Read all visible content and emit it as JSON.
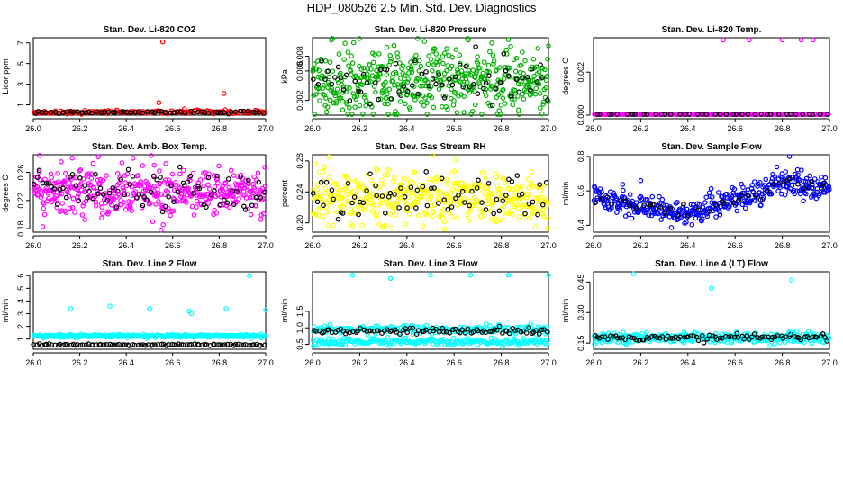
{
  "page_title": "HDP_080526  2.5 Min. Std. Dev. Diagnostics",
  "colors": {
    "overlay": "#000000",
    "axis": "#000000"
  },
  "chart_data": [
    {
      "id": "co2",
      "type": "scatter",
      "title": "Stan. Dev. Li-820 CO2",
      "ylabel": "Licor ppm",
      "color": "#ff0000",
      "xlim": [
        26.0,
        27.0
      ],
      "ylim": [
        0,
        7.5
      ],
      "xticks": [
        "26.0",
        "26.2",
        "26.4",
        "26.6",
        "26.8",
        "27.0"
      ],
      "yticks": [
        {
          "v": 1,
          "label": "1"
        },
        {
          "v": 3,
          "label": "3"
        },
        {
          "v": 5,
          "label": "5"
        },
        {
          "v": 7,
          "label": "7"
        }
      ],
      "base": {
        "mean": 0.3,
        "spread": 0.08,
        "n": 150
      },
      "overlay": {
        "mean": 0.28,
        "spread": 0.06,
        "n": 60
      },
      "outliers": [
        [
          26.557,
          7.1
        ],
        [
          26.54,
          1.2
        ],
        [
          26.82,
          2.1
        ],
        [
          26.65,
          0.6
        ]
      ]
    },
    {
      "id": "pressure",
      "type": "scatter",
      "title": "Stan. Dev. Li-820 Pressure",
      "ylabel": "kPa",
      "color": "#00b000",
      "xlim": [
        26.0,
        27.0
      ],
      "ylim": [
        0.0,
        0.0105
      ],
      "xticks": [
        "26.0",
        "26.2",
        "26.4",
        "26.6",
        "26.8",
        "27.0"
      ],
      "yticks": [
        {
          "v": 0.002,
          "label": "0.002"
        },
        {
          "v": 0.006,
          "label": "0.006"
        },
        {
          "v": 0.008,
          "label": "0.008"
        }
      ],
      "base": {
        "mean": 0.0045,
        "spread": 0.0022,
        "n": 480
      },
      "overlay": {
        "mean": 0.0045,
        "spread": 0.0018,
        "n": 70
      },
      "outliers": [
        [
          26.66,
          0.0102
        ],
        [
          27.0,
          0.0094
        ],
        [
          26.2,
          0.0013
        ]
      ]
    },
    {
      "id": "temp",
      "type": "scatter",
      "title": "Stan. Dev. Li-820 Temp.",
      "ylabel": "degrees C",
      "color": "#ff00ff",
      "xlim": [
        26.0,
        27.0
      ],
      "ylim": [
        0.0,
        0.0036
      ],
      "xticks": [
        "26.0",
        "26.2",
        "26.4",
        "26.6",
        "26.8",
        "27.0"
      ],
      "yticks": [
        {
          "v": 0.0,
          "label": "0.000"
        },
        {
          "v": 0.002,
          "label": "0.002"
        }
      ],
      "base": {
        "mean": 0.0,
        "spread": 1e-05,
        "n": 150
      },
      "overlay": {
        "mean": 0.0,
        "spread": 1e-05,
        "n": 40
      },
      "outliers": [
        [
          26.55,
          0.0035
        ],
        [
          26.66,
          0.0035
        ],
        [
          26.8,
          0.0035
        ],
        [
          26.88,
          0.0035
        ],
        [
          26.93,
          0.0035
        ]
      ]
    },
    {
      "id": "boxtemp",
      "type": "scatter",
      "title": "Stan. Dev. Amb. Box Temp.",
      "ylabel": "degrees C",
      "color": "#ff00ff",
      "xlim": [
        26.0,
        27.0
      ],
      "ylim": [
        0.175,
        0.285
      ],
      "xticks": [
        "26.0",
        "26.2",
        "26.4",
        "26.6",
        "26.8",
        "27.0"
      ],
      "yticks": [
        {
          "v": 0.18,
          "label": "0.18"
        },
        {
          "v": 0.22,
          "label": "0.22"
        },
        {
          "v": 0.26,
          "label": "0.26"
        }
      ],
      "base": {
        "mean": 0.232,
        "spread": 0.018,
        "n": 420
      },
      "overlay": {
        "mean": 0.232,
        "spread": 0.015,
        "n": 80
      },
      "outliers": [
        [
          26.28,
          0.282
        ],
        [
          26.55,
          0.178
        ],
        [
          26.12,
          0.275
        ],
        [
          26.52,
          0.27
        ]
      ]
    },
    {
      "id": "rh",
      "type": "scatter",
      "title": "Stan. Dev. Gas Stream RH",
      "ylabel": "percent",
      "color": "#ffff00",
      "xlim": [
        26.0,
        27.0
      ],
      "ylim": [
        0.188,
        0.288
      ],
      "xticks": [
        "26.0",
        "26.2",
        "26.4",
        "26.6",
        "26.8",
        "27.0"
      ],
      "yticks": [
        {
          "v": 0.2,
          "label": "0.20"
        },
        {
          "v": 0.24,
          "label": "0.24"
        },
        {
          "v": 0.28,
          "label": "0.28"
        }
      ],
      "base": {
        "mean": 0.232,
        "spread": 0.016,
        "n": 420
      },
      "overlay": {
        "mean": 0.232,
        "spread": 0.014,
        "n": 70
      },
      "outliers": [
        [
          26.07,
          0.285
        ],
        [
          26.56,
          0.192
        ]
      ]
    },
    {
      "id": "sampleflow",
      "type": "scatter",
      "title": "Stan. Dev. Sample Flow",
      "ylabel": "ml/min",
      "color": "#0000ff",
      "xlim": [
        26.0,
        27.0
      ],
      "ylim": [
        0.36,
        0.81
      ],
      "xticks": [
        "26.0",
        "26.2",
        "26.4",
        "26.6",
        "26.8",
        "27.0"
      ],
      "yticks": [
        {
          "v": 0.4,
          "label": "0.4"
        },
        {
          "v": 0.6,
          "label": "0.6"
        },
        {
          "v": 0.8,
          "label": "0.8"
        }
      ],
      "trend": [
        [
          26.0,
          0.55
        ],
        [
          26.1,
          0.54
        ],
        [
          26.2,
          0.52
        ],
        [
          26.3,
          0.48
        ],
        [
          26.4,
          0.47
        ],
        [
          26.5,
          0.5
        ],
        [
          26.6,
          0.55
        ],
        [
          26.7,
          0.58
        ],
        [
          26.8,
          0.66
        ],
        [
          26.9,
          0.63
        ],
        [
          27.0,
          0.62
        ]
      ],
      "base": {
        "mean": 0.0,
        "spread": 0.035,
        "n": 420
      },
      "overlay": {
        "mean": 0.0,
        "spread": 0.02,
        "n": 40
      },
      "outliers": [
        [
          26.83,
          0.8
        ],
        [
          26.2,
          0.66
        ]
      ]
    },
    {
      "id": "line2",
      "type": "scatter",
      "title": "Stan. Dev. Line 2 Flow",
      "ylabel": "ml/min",
      "color": "#00ffff",
      "xlim": [
        26.0,
        27.0
      ],
      "ylim": [
        0.2,
        6.3
      ],
      "xticks": [
        "26.0",
        "26.2",
        "26.4",
        "26.6",
        "26.8",
        "27.0"
      ],
      "yticks": [
        {
          "v": 1,
          "label": "1"
        },
        {
          "v": 2,
          "label": "2"
        },
        {
          "v": 3,
          "label": "3"
        },
        {
          "v": 4,
          "label": "4"
        },
        {
          "v": 5,
          "label": "5"
        },
        {
          "v": 6,
          "label": "6"
        }
      ],
      "base": {
        "mean": 1.25,
        "spread": 0.06,
        "n": 300
      },
      "overlay": {
        "mean": 0.55,
        "spread": 0.03,
        "n": 90
      },
      "outliers": [
        [
          26.16,
          3.4
        ],
        [
          26.33,
          3.6
        ],
        [
          26.5,
          3.4
        ],
        [
          26.67,
          3.2
        ],
        [
          26.68,
          3.0
        ],
        [
          26.83,
          3.4
        ],
        [
          26.93,
          6.0
        ],
        [
          27.0,
          3.3
        ]
      ]
    },
    {
      "id": "line3",
      "type": "scatter",
      "title": "Stan. Dev. Line 3 Flow",
      "ylabel": "ml/min",
      "color": "#00ffff",
      "xlim": [
        26.0,
        27.0
      ],
      "ylim": [
        0.35,
        2.7
      ],
      "xticks": [
        "26.0",
        "26.2",
        "26.4",
        "26.6",
        "26.8",
        "27.0"
      ],
      "yticks": [
        {
          "v": 0.5,
          "label": "0.5"
        },
        {
          "v": 1.0,
          "label": "1.0"
        },
        {
          "v": 1.5,
          "label": "1.5"
        }
      ],
      "base_bands": [
        {
          "mean": 0.95,
          "spread": 0.06,
          "n": 220
        },
        {
          "mean": 0.58,
          "spread": 0.05,
          "n": 220
        }
      ],
      "overlay": {
        "mean": 0.9,
        "spread": 0.05,
        "n": 90
      },
      "outliers": [
        [
          26.17,
          2.6
        ],
        [
          26.33,
          2.5
        ],
        [
          26.5,
          2.6
        ],
        [
          26.67,
          2.6
        ],
        [
          26.83,
          2.6
        ],
        [
          27.0,
          2.6
        ]
      ]
    },
    {
      "id": "line4",
      "type": "scatter",
      "title": "Stan. Dev. Line 4 (LT) Flow",
      "ylabel": "ml/min",
      "color": "#00ffff",
      "xlim": [
        26.0,
        27.0
      ],
      "ylim": [
        0.12,
        0.5
      ],
      "xticks": [
        "26.0",
        "26.2",
        "26.4",
        "26.6",
        "26.8",
        "27.0"
      ],
      "yticks": [
        {
          "v": 0.15,
          "label": "0.15"
        },
        {
          "v": 0.3,
          "label": "0.30"
        },
        {
          "v": 0.45,
          "label": "0.45"
        }
      ],
      "base": {
        "mean": 0.175,
        "spread": 0.012,
        "n": 360
      },
      "overlay": {
        "mean": 0.178,
        "spread": 0.008,
        "n": 90
      },
      "outliers": [
        [
          26.17,
          0.49
        ],
        [
          26.5,
          0.42
        ],
        [
          26.84,
          0.46
        ],
        [
          26.83,
          0.2
        ],
        [
          26.86,
          0.21
        ]
      ]
    }
  ]
}
